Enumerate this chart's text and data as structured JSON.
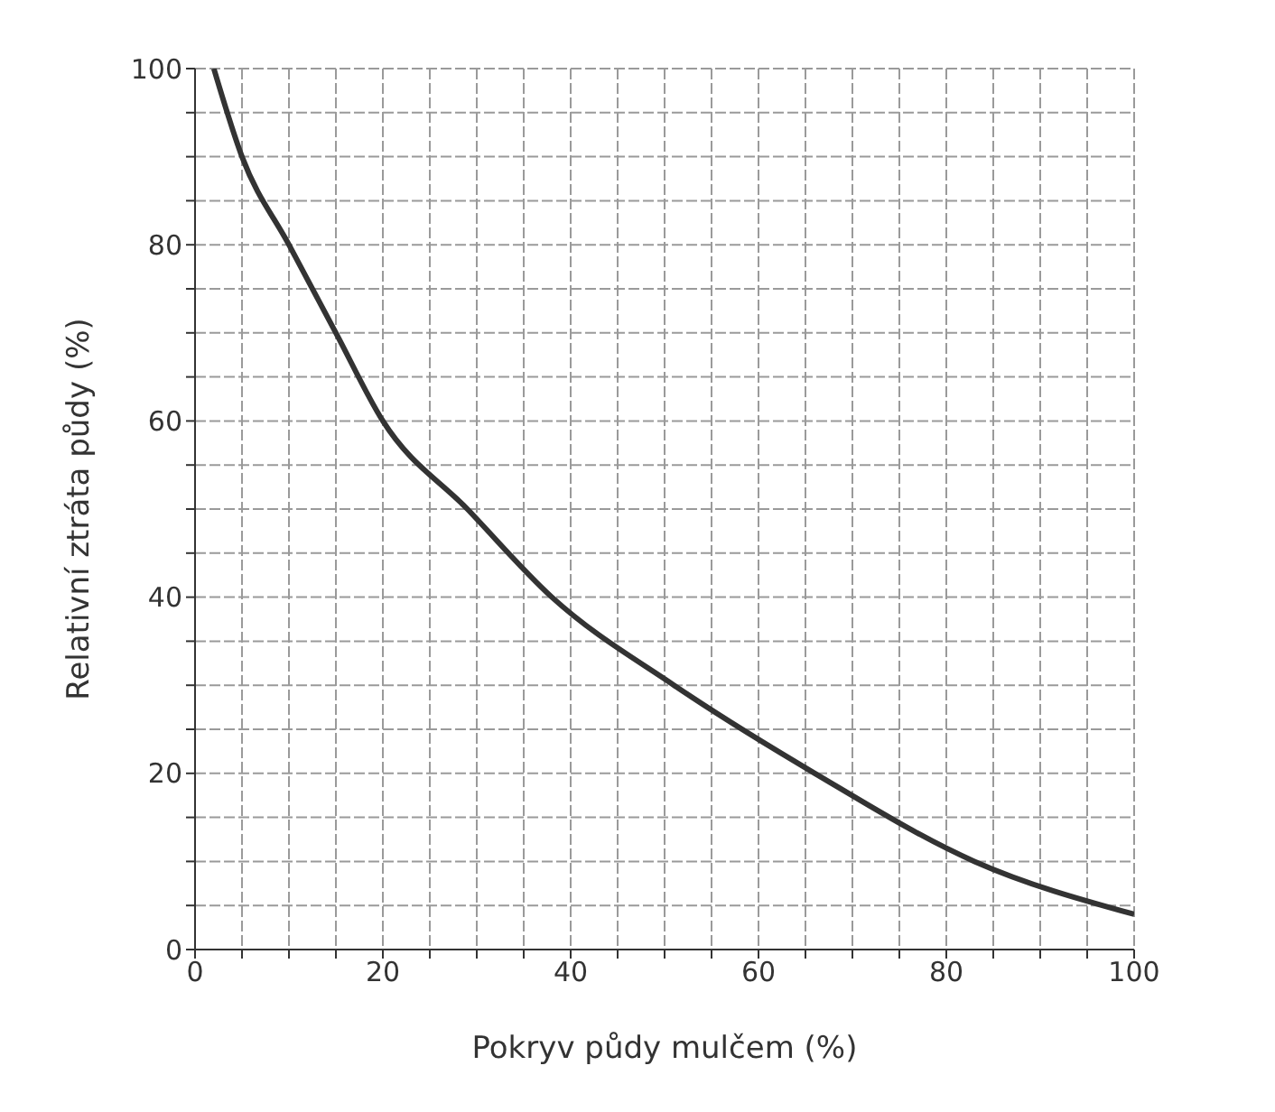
{
  "chart_data": {
    "type": "line",
    "xlabel": "Pokryv půdy mulčem (%)",
    "ylabel": "Relativní ztráta půdy (%)",
    "x": [
      2,
      5,
      10,
      15,
      20,
      29,
      38,
      51,
      66,
      83,
      100
    ],
    "series": [
      {
        "color": "#333333",
        "values": [
          100,
          90,
          80,
          70,
          60,
          50,
          40,
          30,
          20,
          10,
          4
        ]
      }
    ],
    "xlim": [
      0,
      100
    ],
    "ylim": [
      0,
      100
    ],
    "xticks": [
      0,
      {
        "value": 5,
        "label": null
      },
      {
        "value": 10,
        "label": null
      },
      {
        "value": 15,
        "label": null
      },
      20,
      {
        "value": 25,
        "label": null
      },
      {
        "value": 30,
        "label": null
      },
      {
        "value": 35,
        "label": null
      },
      40,
      {
        "value": 45,
        "label": null
      },
      {
        "value": 50,
        "label": null
      },
      {
        "value": 55,
        "label": null
      },
      60,
      {
        "value": 65,
        "label": null
      },
      {
        "value": 70,
        "label": null
      },
      {
        "value": 75,
        "label": null
      },
      80,
      {
        "value": 85,
        "label": null
      },
      {
        "value": 90,
        "label": null
      },
      {
        "value": 95,
        "label": null
      },
      100
    ],
    "yticks": [
      0,
      {
        "value": 5,
        "label": null
      },
      {
        "value": 10,
        "label": null
      },
      {
        "value": 15,
        "label": null
      },
      20,
      {
        "value": 25,
        "label": null
      },
      {
        "value": 30,
        "label": null
      },
      {
        "value": 35,
        "label": null
      },
      40,
      {
        "value": 45,
        "label": null
      },
      {
        "value": 50,
        "label": null
      },
      {
        "value": 55,
        "label": null
      },
      60,
      {
        "value": 65,
        "label": null
      },
      {
        "value": 70,
        "label": null
      },
      {
        "value": 75,
        "label": null
      },
      80,
      {
        "value": 85,
        "label": null
      },
      {
        "value": 90,
        "label": null
      },
      {
        "value": 95,
        "label": null
      },
      100
    ],
    "grid": true,
    "line_style": "solid",
    "marker": "none",
    "legend": false
  }
}
